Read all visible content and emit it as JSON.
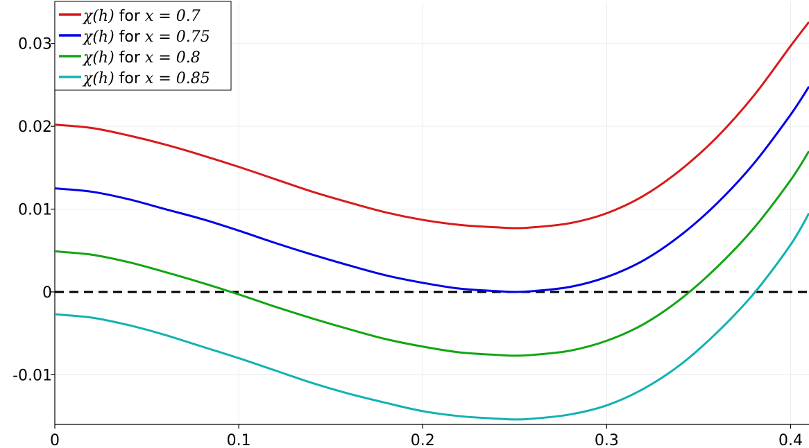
{
  "chart_data": {
    "type": "line",
    "title": "",
    "xlabel": "",
    "ylabel": "",
    "xlim": [
      0,
      0.41
    ],
    "ylim": [
      -0.016,
      0.035
    ],
    "grid": true,
    "legend_position": "top-left",
    "x_ticks": [
      0,
      0.1,
      0.2,
      0.3,
      0.4
    ],
    "x_tick_labels": [
      "0",
      "0.1",
      "0.2",
      "0.3",
      "0.4"
    ],
    "y_ticks": [
      -0.01,
      0,
      0.01,
      0.02,
      0.03
    ],
    "y_tick_labels": [
      "-0.01",
      "0",
      "0.01",
      "0.02",
      "0.03"
    ],
    "reference_line": {
      "y": 0,
      "style": "dashed",
      "color": "#000000"
    },
    "series": [
      {
        "name": "χ(h) for x = 0.7",
        "legend_func": "χ(h)",
        "legend_for": "for",
        "legend_math": "x = 0.7",
        "color": "#d91a1a",
        "x": [
          0,
          0.02,
          0.04,
          0.06,
          0.08,
          0.1,
          0.12,
          0.14,
          0.16,
          0.18,
          0.2,
          0.22,
          0.24,
          0.25,
          0.26,
          0.28,
          0.3,
          0.32,
          0.34,
          0.36,
          0.38,
          0.4,
          0.41
        ],
        "y": [
          0.0202,
          0.0198,
          0.0189,
          0.0178,
          0.0165,
          0.0151,
          0.0136,
          0.0121,
          0.0108,
          0.0096,
          0.0087,
          0.0081,
          0.0078,
          0.0077,
          0.0078,
          0.0083,
          0.0095,
          0.0116,
          0.0147,
          0.0187,
          0.0237,
          0.0297,
          0.0326
        ]
      },
      {
        "name": "χ(h) for x = 0.75",
        "legend_func": "χ(h)",
        "legend_for": "for",
        "legend_math": "x = 0.75",
        "color": "#0000e6",
        "x": [
          0,
          0.02,
          0.04,
          0.06,
          0.08,
          0.1,
          0.12,
          0.14,
          0.16,
          0.18,
          0.2,
          0.22,
          0.24,
          0.25,
          0.26,
          0.28,
          0.3,
          0.32,
          0.34,
          0.36,
          0.38,
          0.4,
          0.41
        ],
        "y": [
          0.0125,
          0.0121,
          0.0112,
          0.01,
          0.0088,
          0.0074,
          0.0059,
          0.0045,
          0.0032,
          0.002,
          0.0011,
          0.0004,
          0.0001,
          0.0,
          0.0001,
          0.0006,
          0.0018,
          0.0038,
          0.0068,
          0.0107,
          0.0155,
          0.0214,
          0.0248
        ]
      },
      {
        "name": "χ(h) for x = 0.8",
        "legend_func": "χ(h)",
        "legend_for": "for",
        "legend_math": "x = 0.8",
        "color": "#12a512",
        "x": [
          0,
          0.02,
          0.04,
          0.06,
          0.08,
          0.1,
          0.12,
          0.14,
          0.16,
          0.18,
          0.2,
          0.22,
          0.24,
          0.25,
          0.26,
          0.28,
          0.3,
          0.32,
          0.34,
          0.36,
          0.38,
          0.4,
          0.41
        ],
        "y": [
          0.0049,
          0.0045,
          0.0036,
          0.0024,
          0.0011,
          -0.0003,
          -0.0018,
          -0.0032,
          -0.0045,
          -0.0057,
          -0.0066,
          -0.0073,
          -0.0076,
          -0.0077,
          -0.0076,
          -0.0071,
          -0.0059,
          -0.0039,
          -0.0009,
          0.003,
          0.0077,
          0.0135,
          0.017
        ]
      },
      {
        "name": "χ(h) for x = 0.85",
        "legend_func": "χ(h)",
        "legend_for": "for",
        "legend_math": "x = 0.85",
        "color": "#12b2b2",
        "x": [
          0,
          0.02,
          0.04,
          0.06,
          0.08,
          0.1,
          0.12,
          0.14,
          0.16,
          0.18,
          0.2,
          0.22,
          0.24,
          0.25,
          0.26,
          0.28,
          0.3,
          0.32,
          0.34,
          0.36,
          0.38,
          0.4,
          0.41
        ],
        "y": [
          -0.0027,
          -0.0031,
          -0.004,
          -0.0052,
          -0.0066,
          -0.008,
          -0.0095,
          -0.011,
          -0.0123,
          -0.0134,
          -0.0144,
          -0.015,
          -0.0153,
          -0.0154,
          -0.0153,
          -0.0148,
          -0.0137,
          -0.0117,
          -0.0088,
          -0.0049,
          -0.0002,
          0.0057,
          0.0095
        ]
      }
    ]
  }
}
